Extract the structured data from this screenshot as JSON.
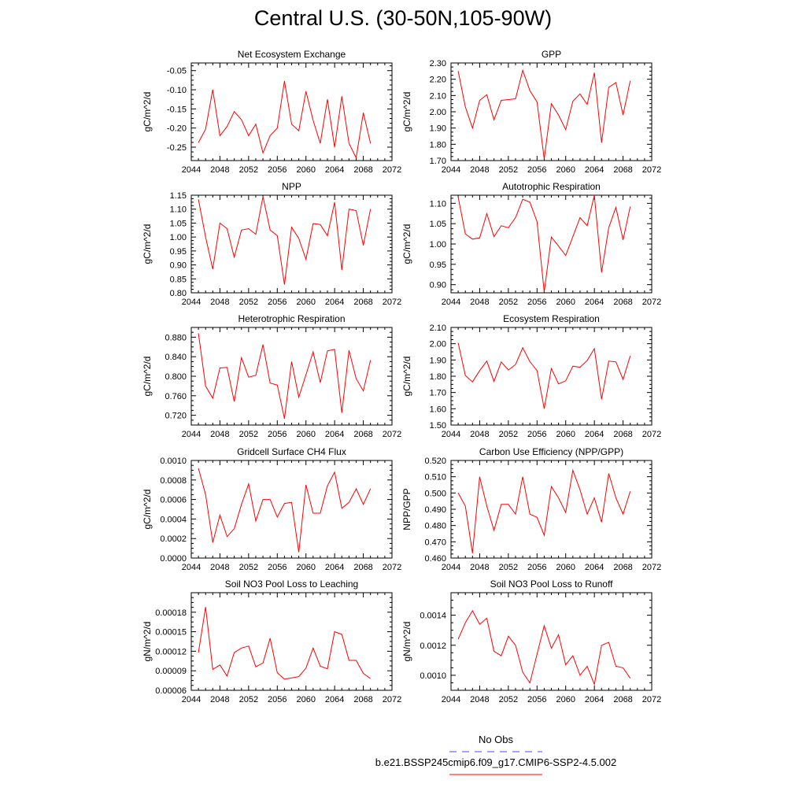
{
  "title": "Central U.S. (30-50N,105-90W)",
  "colors": {
    "series": "#ff0000",
    "obs": "#4a4aff",
    "axis": "#000000"
  },
  "legend": {
    "obs_label": "No Obs",
    "model_label": "b.e21.BSSP245cmip6.f09_g17.CMIP6-SSP2-4.5.002"
  },
  "chart_data": [
    {
      "type": "line",
      "title": "Net Ecosystem Exchange",
      "ylabel": "gC/m^2/d",
      "xlim": [
        2044,
        2072
      ],
      "xticks": [
        2044,
        2048,
        2052,
        2056,
        2060,
        2064,
        2068,
        2072
      ],
      "ylim": [
        -0.285,
        -0.03
      ],
      "yticks": [
        -0.05,
        -0.1,
        -0.15,
        -0.2,
        -0.25
      ],
      "ydec": 2,
      "series": [
        {
          "x": [
            2045,
            2046,
            2047,
            2048,
            2049,
            2050,
            2051,
            2052,
            2053,
            2054,
            2055,
            2056,
            2057,
            2058,
            2059,
            2060,
            2061,
            2062,
            2063,
            2064,
            2065,
            2066,
            2067,
            2068,
            2069
          ],
          "values": [
            -0.238,
            -0.203,
            -0.1,
            -0.22,
            -0.196,
            -0.157,
            -0.178,
            -0.22,
            -0.19,
            -0.265,
            -0.22,
            -0.2,
            -0.077,
            -0.19,
            -0.207,
            -0.104,
            -0.18,
            -0.24,
            -0.125,
            -0.25,
            -0.117,
            -0.24,
            -0.278,
            -0.16,
            -0.24
          ]
        }
      ]
    },
    {
      "type": "line",
      "title": "GPP",
      "ylabel": "gC/m^2/d",
      "xlim": [
        2044,
        2072
      ],
      "xticks": [
        2044,
        2048,
        2052,
        2056,
        2060,
        2064,
        2068,
        2072
      ],
      "ylim": [
        1.7,
        2.3
      ],
      "yticks": [
        1.7,
        1.8,
        1.9,
        2.0,
        2.1,
        2.2,
        2.3
      ],
      "ydec": 2,
      "series": [
        {
          "x": [
            2045,
            2046,
            2047,
            2048,
            2049,
            2050,
            2051,
            2052,
            2053,
            2054,
            2055,
            2056,
            2057,
            2058,
            2059,
            2060,
            2061,
            2062,
            2063,
            2064,
            2065,
            2066,
            2067,
            2068,
            2069
          ],
          "values": [
            2.25,
            2.03,
            1.9,
            2.07,
            2.105,
            1.95,
            2.07,
            2.075,
            2.08,
            2.255,
            2.13,
            2.06,
            1.71,
            2.05,
            1.98,
            1.89,
            2.065,
            2.11,
            2.045,
            2.24,
            1.81,
            2.15,
            2.18,
            1.98,
            2.19
          ]
        }
      ]
    },
    {
      "type": "line",
      "title": "NPP",
      "ylabel": "gC/m^2/d",
      "xlim": [
        2044,
        2072
      ],
      "xticks": [
        2044,
        2048,
        2052,
        2056,
        2060,
        2064,
        2068,
        2072
      ],
      "ylim": [
        0.8,
        1.15
      ],
      "yticks": [
        0.8,
        0.85,
        0.9,
        0.95,
        1.0,
        1.05,
        1.1,
        1.15
      ],
      "ydec": 2,
      "series": [
        {
          "x": [
            2045,
            2046,
            2047,
            2048,
            2049,
            2050,
            2051,
            2052,
            2053,
            2054,
            2055,
            2056,
            2057,
            2058,
            2059,
            2060,
            2061,
            2062,
            2063,
            2064,
            2065,
            2066,
            2067,
            2068,
            2069
          ],
          "values": [
            1.135,
            1.0,
            0.885,
            1.05,
            1.03,
            0.928,
            1.025,
            1.03,
            1.01,
            1.145,
            1.025,
            1.005,
            0.83,
            1.035,
            0.995,
            0.92,
            1.048,
            1.045,
            1.005,
            1.125,
            0.882,
            1.1,
            1.095,
            0.97,
            1.1
          ]
        }
      ]
    },
    {
      "type": "line",
      "title": "Autotrophic Respiration",
      "ylabel": "gC/m^2/d",
      "xlim": [
        2044,
        2072
      ],
      "xticks": [
        2044,
        2048,
        2052,
        2056,
        2060,
        2064,
        2068,
        2072
      ],
      "ylim": [
        0.88,
        1.12
      ],
      "yticks": [
        0.9,
        0.95,
        1.0,
        1.05,
        1.1
      ],
      "ydec": 2,
      "series": [
        {
          "x": [
            2045,
            2046,
            2047,
            2048,
            2049,
            2050,
            2051,
            2052,
            2053,
            2054,
            2055,
            2056,
            2057,
            2058,
            2059,
            2060,
            2061,
            2062,
            2063,
            2064,
            2065,
            2066,
            2067,
            2068,
            2069
          ],
          "values": [
            1.115,
            1.025,
            1.012,
            1.015,
            1.075,
            1.018,
            1.045,
            1.04,
            1.065,
            1.11,
            1.103,
            1.055,
            0.882,
            1.017,
            0.995,
            0.972,
            1.018,
            1.065,
            1.045,
            1.12,
            0.93,
            1.04,
            1.09,
            1.01,
            1.092
          ]
        }
      ]
    },
    {
      "type": "line",
      "title": "Heterotrophic Respiration",
      "ylabel": "gC/m^2/d",
      "xlim": [
        2044,
        2072
      ],
      "xticks": [
        2044,
        2048,
        2052,
        2056,
        2060,
        2064,
        2068,
        2072
      ],
      "ylim": [
        0.7,
        0.9
      ],
      "yticks": [
        0.72,
        0.76,
        0.8,
        0.84,
        0.88
      ],
      "ydec": 3,
      "series": [
        {
          "x": [
            2045,
            2046,
            2047,
            2048,
            2049,
            2050,
            2051,
            2052,
            2053,
            2054,
            2055,
            2056,
            2057,
            2058,
            2059,
            2060,
            2061,
            2062,
            2063,
            2064,
            2065,
            2066,
            2067,
            2068,
            2069
          ],
          "values": [
            0.888,
            0.78,
            0.755,
            0.817,
            0.818,
            0.748,
            0.838,
            0.798,
            0.802,
            0.865,
            0.786,
            0.782,
            0.713,
            0.83,
            0.757,
            0.803,
            0.85,
            0.787,
            0.852,
            0.855,
            0.725,
            0.853,
            0.795,
            0.77,
            0.833
          ]
        }
      ]
    },
    {
      "type": "line",
      "title": "Ecosystem Respiration",
      "ylabel": "gC/m^2/d",
      "xlim": [
        2044,
        2072
      ],
      "xticks": [
        2044,
        2048,
        2052,
        2056,
        2060,
        2064,
        2068,
        2072
      ],
      "ylim": [
        1.5,
        2.1
      ],
      "yticks": [
        1.5,
        1.6,
        1.7,
        1.8,
        1.9,
        2.0,
        2.1
      ],
      "ydec": 2,
      "series": [
        {
          "x": [
            2045,
            2046,
            2047,
            2048,
            2049,
            2050,
            2051,
            2052,
            2053,
            2054,
            2055,
            2056,
            2057,
            2058,
            2059,
            2060,
            2061,
            2062,
            2063,
            2064,
            2065,
            2066,
            2067,
            2068,
            2069
          ],
          "values": [
            2.005,
            1.805,
            1.765,
            1.835,
            1.893,
            1.768,
            1.888,
            1.838,
            1.872,
            1.975,
            1.89,
            1.835,
            1.6,
            1.848,
            1.753,
            1.772,
            1.862,
            1.855,
            1.897,
            1.97,
            1.658,
            1.893,
            1.888,
            1.78,
            1.925
          ]
        }
      ]
    },
    {
      "type": "line",
      "title": "Gridcell Surface CH4 Flux",
      "ylabel": "gC/m^2/d",
      "xlim": [
        2044,
        2072
      ],
      "xticks": [
        2044,
        2048,
        2052,
        2056,
        2060,
        2064,
        2068,
        2072
      ],
      "ylim": [
        0.0,
        0.001
      ],
      "yticks": [
        0.0,
        0.0002,
        0.0004,
        0.0006,
        0.0008,
        0.001
      ],
      "ydec": 4,
      "series": [
        {
          "x": [
            2045,
            2046,
            2047,
            2048,
            2049,
            2050,
            2051,
            2052,
            2053,
            2054,
            2055,
            2056,
            2057,
            2058,
            2059,
            2060,
            2061,
            2062,
            2063,
            2064,
            2065,
            2066,
            2067,
            2068,
            2069
          ],
          "values": [
            0.00092,
            0.00065,
            0.00016,
            0.00044,
            0.00022,
            0.0003,
            0.00055,
            0.00076,
            0.00038,
            0.0006,
            0.0006,
            0.00042,
            0.00056,
            0.00057,
            6e-05,
            0.00075,
            0.00046,
            0.00046,
            0.00074,
            0.00088,
            0.00051,
            0.00057,
            0.00071,
            0.00055,
            0.00071
          ]
        }
      ]
    },
    {
      "type": "line",
      "title": "Carbon Use Efficiency (NPP/GPP)",
      "ylabel": "NPP/GPP",
      "xlim": [
        2044,
        2072
      ],
      "xticks": [
        2044,
        2048,
        2052,
        2056,
        2060,
        2064,
        2068,
        2072
      ],
      "ylim": [
        0.46,
        0.52
      ],
      "yticks": [
        0.46,
        0.47,
        0.48,
        0.49,
        0.5,
        0.51,
        0.52
      ],
      "ydec": 3,
      "series": [
        {
          "x": [
            2045,
            2046,
            2047,
            2048,
            2049,
            2050,
            2051,
            2052,
            2053,
            2054,
            2055,
            2056,
            2057,
            2058,
            2059,
            2060,
            2061,
            2062,
            2063,
            2064,
            2065,
            2066,
            2067,
            2068,
            2069
          ],
          "values": [
            0.5,
            0.492,
            0.463,
            0.51,
            0.492,
            0.477,
            0.493,
            0.493,
            0.487,
            0.51,
            0.487,
            0.485,
            0.474,
            0.504,
            0.497,
            0.488,
            0.514,
            0.502,
            0.487,
            0.497,
            0.482,
            0.512,
            0.497,
            0.487,
            0.501
          ]
        }
      ]
    },
    {
      "type": "line",
      "title": "Soil NO3 Pool Loss to Leaching",
      "ylabel": "gN/m^2/d",
      "xlim": [
        2044,
        2072
      ],
      "xticks": [
        2044,
        2048,
        2052,
        2056,
        2060,
        2064,
        2068,
        2072
      ],
      "ylim": [
        6e-05,
        0.00021
      ],
      "yticks": [
        6e-05,
        9e-05,
        0.00012,
        0.00015,
        0.00018
      ],
      "ydec": 5,
      "series": [
        {
          "x": [
            2045,
            2046,
            2047,
            2048,
            2049,
            2050,
            2051,
            2052,
            2053,
            2054,
            2055,
            2056,
            2057,
            2058,
            2059,
            2060,
            2061,
            2062,
            2063,
            2064,
            2065,
            2066,
            2067,
            2068,
            2069
          ],
          "values": [
            0.000118,
            0.000188,
            9.2e-05,
            9.9e-05,
            8.2e-05,
            0.000118,
            0.000125,
            0.000128,
            9.6e-05,
            0.000102,
            0.00014,
            8.7e-05,
            7.7e-05,
            7.9e-05,
            8.1e-05,
            9.4e-05,
            0.000125,
            9.7e-05,
            9.3e-05,
            0.00015,
            0.000146,
            0.000106,
            0.000106,
            8.6e-05,
            7.8e-05
          ]
        }
      ]
    },
    {
      "type": "line",
      "title": "Soil NO3 Pool Loss to Runoff",
      "ylabel": "gN/m^2/d",
      "xlim": [
        2044,
        2072
      ],
      "xticks": [
        2044,
        2048,
        2052,
        2056,
        2060,
        2064,
        2068,
        2072
      ],
      "ylim": [
        0.0009,
        0.00155
      ],
      "yticks": [
        0.001,
        0.0012,
        0.0014
      ],
      "ydec": 4,
      "series": [
        {
          "x": [
            2045,
            2046,
            2047,
            2048,
            2049,
            2050,
            2051,
            2052,
            2053,
            2054,
            2055,
            2056,
            2057,
            2058,
            2059,
            2060,
            2061,
            2062,
            2063,
            2064,
            2065,
            2066,
            2067,
            2068,
            2069
          ],
          "values": [
            0.00124,
            0.00135,
            0.00143,
            0.00134,
            0.00138,
            0.00116,
            0.00113,
            0.00126,
            0.0012,
            0.00102,
            0.00095,
            0.00114,
            0.00133,
            0.00118,
            0.00127,
            0.00107,
            0.00113,
            0.001,
            0.00106,
            0.00094,
            0.0012,
            0.00122,
            0.00106,
            0.00105,
            0.00098
          ]
        }
      ]
    }
  ]
}
